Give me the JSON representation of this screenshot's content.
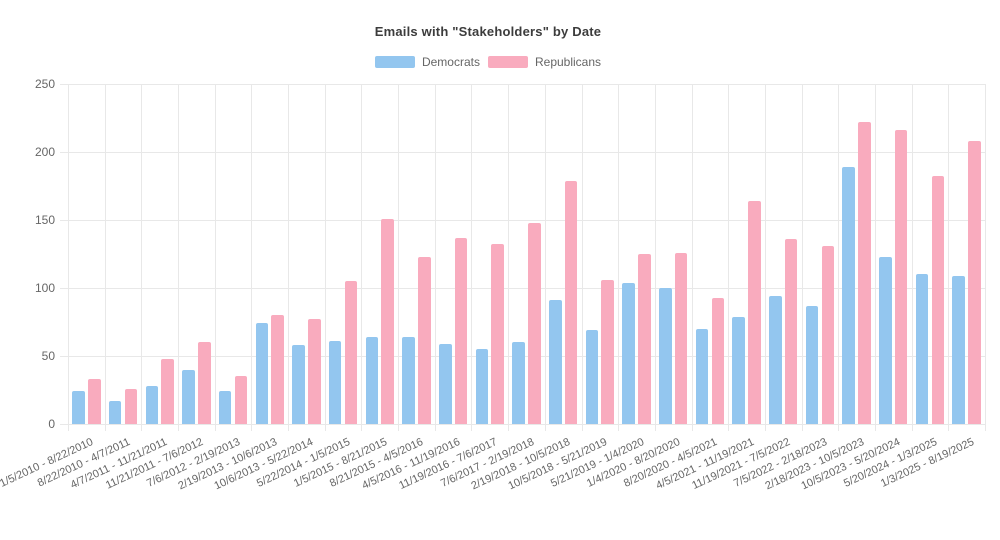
{
  "chart_data": {
    "type": "bar",
    "title": "Emails with \"Stakeholders\" by Date",
    "xlabel": "",
    "ylabel": "",
    "ylim": [
      0,
      250
    ],
    "ytick_step": 50,
    "grid": true,
    "legend_position": "top",
    "categories": [
      "1/5/2010 - 8/22/2010",
      "8/22/2010 - 4/7/2011",
      "4/7/2011 - 11/21/2011",
      "11/21/2011 - 7/6/2012",
      "7/6/2012 - 2/19/2013",
      "2/19/2013 - 10/6/2013",
      "10/6/2013 - 5/22/2014",
      "5/22/2014 - 1/5/2015",
      "1/5/2015 - 8/21/2015",
      "8/21/2015 - 4/5/2016",
      "4/5/2016 - 11/19/2016",
      "11/19/2016 - 7/6/2017",
      "7/6/2017 - 2/19/2018",
      "2/19/2018 - 10/5/2018",
      "10/5/2018 - 5/21/2019",
      "5/21/2019 - 1/4/2020",
      "1/4/2020 - 8/20/2020",
      "8/20/2020 - 4/5/2021",
      "4/5/2021 - 11/19/2021",
      "11/19/2021 - 7/5/2022",
      "7/5/2022 - 2/18/2023",
      "2/18/2023 - 10/5/2023",
      "10/5/2023 - 5/20/2024",
      "5/20/2024 - 1/3/2025",
      "1/3/2025 - 8/19/2025"
    ],
    "series": [
      {
        "name": "Democrats",
        "color": "#93c6ef",
        "values": [
          24,
          17,
          28,
          40,
          24,
          74,
          58,
          61,
          64,
          64,
          59,
          55,
          60,
          91,
          69,
          104,
          100,
          70,
          79,
          94,
          87,
          189,
          123,
          110,
          109
        ]
      },
      {
        "name": "Republicans",
        "color": "#f9abbe",
        "values": [
          33,
          26,
          48,
          60,
          35,
          80,
          77,
          105,
          151,
          123,
          137,
          132,
          148,
          179,
          106,
          125,
          126,
          93,
          164,
          136,
          131,
          222,
          216,
          182,
          208
        ]
      }
    ]
  },
  "colors": {
    "grid": "#e8e8e8",
    "tick_label": "#666666",
    "title": "#3c3c3c",
    "background": "#ffffff"
  }
}
